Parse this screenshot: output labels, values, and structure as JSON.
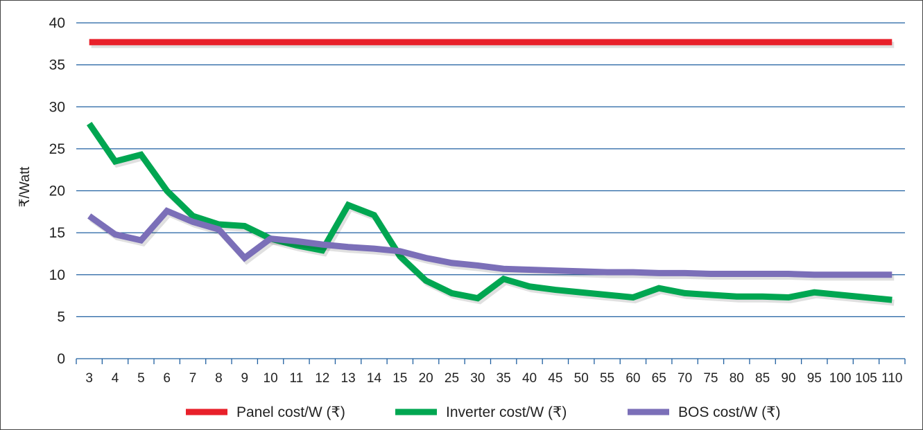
{
  "chart_data": {
    "type": "line",
    "title": "",
    "xlabel": "",
    "ylabel": "₹/Watt",
    "ylim": [
      0,
      40
    ],
    "yticks": [
      0,
      5,
      10,
      15,
      20,
      25,
      30,
      35,
      40
    ],
    "grid": true,
    "legend_placement": "bottom",
    "categories": [
      "3",
      "4",
      "5",
      "6",
      "7",
      "8",
      "9",
      "10",
      "11",
      "12",
      "13",
      "14",
      "15",
      "20",
      "25",
      "30",
      "35",
      "40",
      "45",
      "50",
      "55",
      "60",
      "65",
      "70",
      "75",
      "80",
      "85",
      "90",
      "95",
      "100",
      "105",
      "110"
    ],
    "series": [
      {
        "name": "Panel cost/W (₹)",
        "color": "#e8202a",
        "values": [
          37.7,
          37.7,
          37.7,
          37.7,
          37.7,
          37.7,
          37.7,
          37.7,
          37.7,
          37.7,
          37.7,
          37.7,
          37.7,
          37.7,
          37.7,
          37.7,
          37.7,
          37.7,
          37.7,
          37.7,
          37.7,
          37.7,
          37.7,
          37.7,
          37.7,
          37.7,
          37.7,
          37.7,
          37.7,
          37.7,
          37.7,
          37.7
        ]
      },
      {
        "name": "Inverter cost/W (₹)",
        "color": "#00a651",
        "values": [
          28,
          23.5,
          24.3,
          20,
          17,
          16,
          15.8,
          14.3,
          13.5,
          12.9,
          18.3,
          17.1,
          12.2,
          9.3,
          7.8,
          7.2,
          9.5,
          8.6,
          8.2,
          7.9,
          7.6,
          7.3,
          8.4,
          7.8,
          7.6,
          7.4,
          7.4,
          7.3,
          7.9,
          7.6,
          7.3,
          7.0
        ]
      },
      {
        "name": "BOS cost/W (₹)",
        "color": "#7b6fb8",
        "values": [
          17,
          14.8,
          14.1,
          17.6,
          16.3,
          15.4,
          12,
          14.3,
          14,
          13.6,
          13.3,
          13.1,
          12.8,
          12,
          11.4,
          11.1,
          10.7,
          10.6,
          10.5,
          10.4,
          10.3,
          10.3,
          10.2,
          10.2,
          10.1,
          10.1,
          10.1,
          10.1,
          10.0,
          10.0,
          10.0,
          10.0
        ]
      }
    ],
    "grid_color": "#1f5fa0"
  }
}
